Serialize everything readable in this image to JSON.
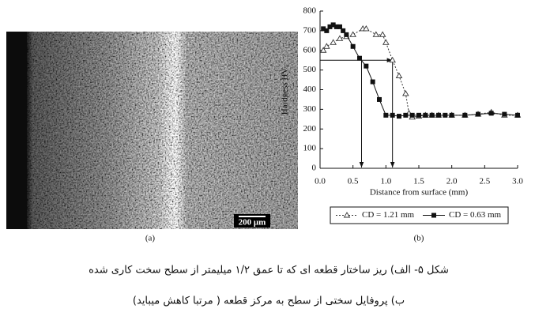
{
  "chart_data": {
    "type": "line",
    "x_label": "Distance from surface (mm)",
    "y_label": "Hardness HV₁",
    "xlim": [
      0,
      3
    ],
    "ylim": [
      0,
      800
    ],
    "xticks": [
      {
        "value": 0,
        "label": "0.0"
      },
      0.5,
      {
        "value": 1,
        "label": "1.0"
      },
      1.5,
      {
        "value": 2,
        "label": "2.0"
      },
      2.5,
      {
        "value": 3,
        "label": "3.0"
      }
    ],
    "yticks": [
      0,
      100,
      200,
      300,
      400,
      500,
      600,
      700,
      800
    ],
    "series": [
      {
        "name": "CD = 1.21 mm",
        "color": "#333333",
        "marker": "triangle-open",
        "line_style": "dashed",
        "x": [
          0.05,
          0.1,
          0.2,
          0.3,
          0.4,
          0.5,
          0.65,
          0.7,
          0.85,
          0.95,
          1.0,
          1.1,
          1.2,
          1.3,
          1.35,
          1.4,
          1.5,
          1.6,
          1.7,
          1.8,
          2.0,
          2.2,
          2.4,
          2.6,
          2.8,
          3.0
        ],
        "values": [
          600,
          620,
          640,
          660,
          670,
          680,
          710,
          710,
          680,
          680,
          640,
          550,
          470,
          380,
          280,
          260,
          265,
          270,
          270,
          270,
          270,
          270,
          275,
          285,
          270,
          270
        ]
      },
      {
        "name": "CD = 0.63 mm",
        "color": "#111111",
        "marker": "square",
        "line_style": "solid",
        "x": [
          0.05,
          0.1,
          0.15,
          0.2,
          0.25,
          0.3,
          0.35,
          0.4,
          0.5,
          0.6,
          0.7,
          0.8,
          0.9,
          1.0,
          1.1,
          1.2,
          1.3,
          1.4,
          1.5,
          1.6,
          1.7,
          1.8,
          1.9,
          2.0,
          2.2,
          2.4,
          2.6,
          2.8,
          3.0
        ],
        "values": [
          710,
          700,
          720,
          730,
          720,
          720,
          700,
          680,
          620,
          560,
          520,
          440,
          350,
          270,
          270,
          265,
          270,
          270,
          270,
          270,
          270,
          270,
          270,
          270,
          270,
          275,
          280,
          275,
          270
        ]
      }
    ],
    "guide_lines": {
      "y": 550,
      "x": [
        0.63,
        1.1
      ]
    },
    "legend": "bottom"
  },
  "figure": {
    "panel_a_label": "(a)",
    "scale_bar": "200 μm",
    "panel_b_label": "(b)",
    "caption": [
      "شکل ۵- الف) ریز ساختار قطعه ای که تا عمق ۱/۲ میلیمتر از سطح سخت کاری شده",
      "ب) پروفایل سختی از سطح به مرکز قطعه ( مرتبا کاهش میباید)"
    ]
  }
}
